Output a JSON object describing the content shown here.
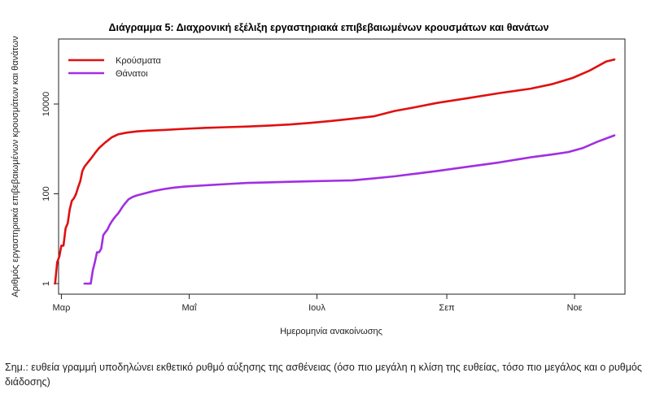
{
  "chart_data": {
    "type": "line",
    "title": "Διάγραμμα 5: Διαχρονική εξέλιξη εργαστηριακά επιβεβαιωμένων κρουσμάτων και θανάτων",
    "xlabel": "Ημερομηνία ανακοίνωσης",
    "ylabel": "Αριθμός εργαστηριακά επιβεβαιωμένων κρουσμάτων και θανάτων",
    "y_scale": "log10",
    "ylim": [
      1,
      100000
    ],
    "yticks": [
      1,
      100,
      10000
    ],
    "ytick_labels": [
      "1",
      "100",
      "10000"
    ],
    "xlim_days": [
      0,
      270
    ],
    "xticks": [
      {
        "label": "Μαρ",
        "day": 6
      },
      {
        "label": "Μαΐ",
        "day": 67
      },
      {
        "label": "Ιουλ",
        "day": 128
      },
      {
        "label": "Σεπ",
        "day": 190
      },
      {
        "label": "Νοε",
        "day": 251
      }
    ],
    "legend_position": "top-left",
    "series": [
      {
        "name": "Κρούσματα",
        "color": "#e01010",
        "points": [
          [
            3,
            1
          ],
          [
            4,
            3
          ],
          [
            5,
            4
          ],
          [
            6,
            7
          ],
          [
            7,
            7
          ],
          [
            8,
            17
          ],
          [
            9,
            22
          ],
          [
            10,
            45
          ],
          [
            11,
            70
          ],
          [
            12,
            80
          ],
          [
            13,
            100
          ],
          [
            14,
            140
          ],
          [
            15,
            190
          ],
          [
            16,
            320
          ],
          [
            17,
            400
          ],
          [
            18,
            460
          ],
          [
            20,
            600
          ],
          [
            22,
            800
          ],
          [
            24,
            1050
          ],
          [
            27,
            1400
          ],
          [
            30,
            1800
          ],
          [
            33,
            2100
          ],
          [
            37,
            2300
          ],
          [
            42,
            2450
          ],
          [
            47,
            2550
          ],
          [
            55,
            2650
          ],
          [
            65,
            2800
          ],
          [
            75,
            2950
          ],
          [
            85,
            3050
          ],
          [
            95,
            3150
          ],
          [
            105,
            3300
          ],
          [
            115,
            3500
          ],
          [
            125,
            3800
          ],
          [
            135,
            4200
          ],
          [
            145,
            4700
          ],
          [
            155,
            5300
          ],
          [
            165,
            7000
          ],
          [
            175,
            8500
          ],
          [
            185,
            10500
          ],
          [
            200,
            13500
          ],
          [
            215,
            17500
          ],
          [
            230,
            22000
          ],
          [
            240,
            27500
          ],
          [
            250,
            38000
          ],
          [
            258,
            55000
          ],
          [
            266,
            88000
          ],
          [
            270,
            98000
          ]
        ]
      },
      {
        "name": "Θάνατοι",
        "color": "#a12ee2",
        "points": [
          [
            17,
            1
          ],
          [
            20,
            1
          ],
          [
            21,
            2
          ],
          [
            22,
            3
          ],
          [
            23,
            5
          ],
          [
            24,
            5
          ],
          [
            25,
            6
          ],
          [
            26,
            12
          ],
          [
            27,
            14
          ],
          [
            28,
            16
          ],
          [
            29,
            20
          ],
          [
            30,
            24
          ],
          [
            31,
            28
          ],
          [
            32,
            32
          ],
          [
            33,
            36
          ],
          [
            34,
            42
          ],
          [
            35,
            50
          ],
          [
            36,
            58
          ],
          [
            38,
            75
          ],
          [
            40,
            85
          ],
          [
            42,
            92
          ],
          [
            45,
            100
          ],
          [
            50,
            115
          ],
          [
            55,
            128
          ],
          [
            60,
            138
          ],
          [
            65,
            145
          ],
          [
            75,
            155
          ],
          [
            85,
            165
          ],
          [
            95,
            175
          ],
          [
            105,
            180
          ],
          [
            115,
            185
          ],
          [
            125,
            190
          ],
          [
            135,
            195
          ],
          [
            145,
            200
          ],
          [
            155,
            220
          ],
          [
            165,
            245
          ],
          [
            175,
            280
          ],
          [
            185,
            320
          ],
          [
            200,
            400
          ],
          [
            215,
            500
          ],
          [
            230,
            650
          ],
          [
            240,
            750
          ],
          [
            248,
            850
          ],
          [
            255,
            1050
          ],
          [
            262,
            1450
          ],
          [
            270,
            2000
          ]
        ]
      }
    ],
    "note": "Σημ.: ευθεία γραμμή υποδηλώνει εκθετικό ρυθμό αύξησης της ασθένειας (όσο πιο μεγάλη η κλίση της ευθείας, τόσο πιο μεγάλος και ο ρυθμός διάδοσης)"
  }
}
